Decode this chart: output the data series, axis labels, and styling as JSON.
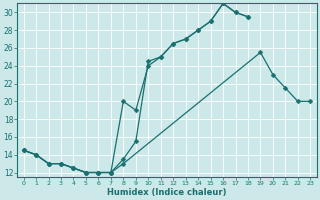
{
  "xlabel": "Humidex (Indice chaleur)",
  "bg_color": "#cce8e8",
  "line_color": "#1a7070",
  "grid_color": "#b0d4d4",
  "xlim": [
    -0.5,
    23.5
  ],
  "ylim": [
    11.5,
    31.0
  ],
  "xticks": [
    0,
    1,
    2,
    3,
    4,
    5,
    6,
    7,
    8,
    9,
    10,
    11,
    12,
    13,
    14,
    15,
    16,
    17,
    18,
    19,
    20,
    21,
    22,
    23
  ],
  "yticks": [
    12,
    14,
    16,
    18,
    20,
    22,
    24,
    26,
    28,
    30
  ],
  "line1_x": [
    0,
    1,
    2,
    3,
    4,
    5,
    6,
    7,
    8,
    9,
    10,
    11,
    12,
    13,
    14,
    15,
    16,
    17,
    18
  ],
  "line1_y": [
    14.5,
    14.0,
    13.0,
    13.0,
    12.5,
    12.0,
    12.0,
    12.0,
    13.5,
    15.5,
    24.5,
    25.0,
    26.5,
    27.0,
    28.0,
    29.0,
    31.0,
    30.0,
    29.5
  ],
  "line2_x": [
    0,
    1,
    2,
    3,
    4,
    5,
    6,
    7,
    8,
    9,
    10,
    11,
    12,
    13,
    14,
    15,
    16,
    17,
    18
  ],
  "line2_y": [
    14.5,
    14.0,
    13.0,
    13.0,
    12.5,
    12.0,
    12.0,
    12.0,
    20.0,
    19.0,
    24.0,
    25.0,
    26.5,
    27.0,
    28.0,
    29.0,
    31.0,
    30.0,
    29.5
  ],
  "line3_x": [
    0,
    1,
    2,
    3,
    4,
    5,
    6,
    7,
    8,
    19,
    20,
    21,
    22,
    23
  ],
  "line3_y": [
    14.5,
    14.0,
    13.0,
    13.0,
    12.5,
    12.0,
    12.0,
    12.0,
    13.0,
    25.5,
    23.0,
    21.5,
    20.0,
    20.0
  ]
}
